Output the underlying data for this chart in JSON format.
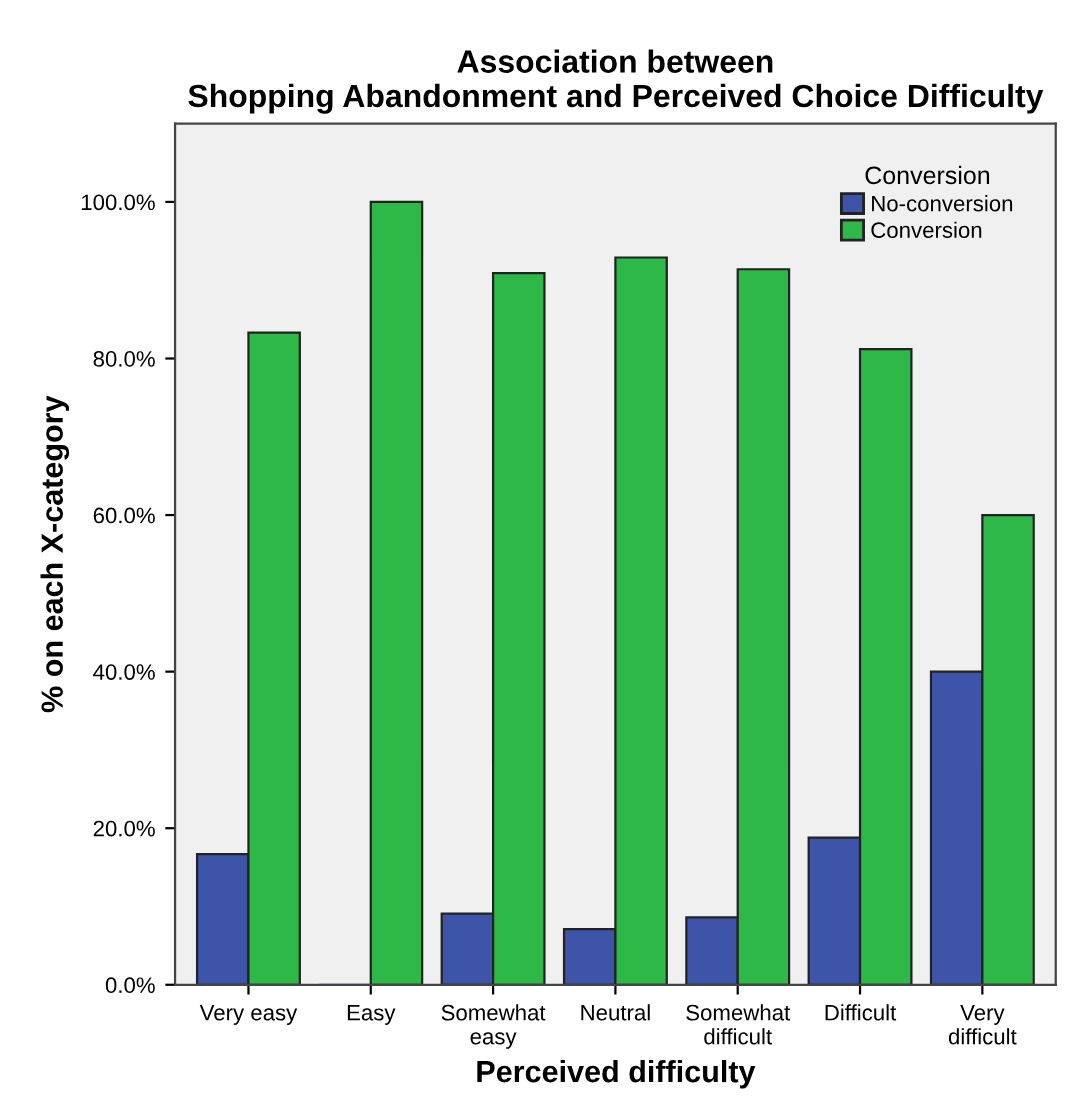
{
  "chart_data": {
    "type": "bar",
    "title": "Association between\nShopping Abandonment and Perceived Choice Difficulty",
    "xlabel": "Perceived difficulty",
    "ylabel": "% on each X-category",
    "legend_title": "Conversion",
    "categories": [
      "Very easy",
      "Easy",
      "Somewhat\neasy",
      "Neutral",
      "Somewhat\ndifficult",
      "Difficult",
      "Very\ndifficult"
    ],
    "series": [
      {
        "name": "No-conversion",
        "color": "#3d54a8",
        "values": [
          16.7,
          0,
          9.1,
          7.1,
          8.6,
          18.8,
          40.0
        ]
      },
      {
        "name": "Conversion",
        "color": "#2eb848",
        "values": [
          83.3,
          100,
          90.9,
          92.9,
          91.4,
          81.2,
          60.0
        ]
      }
    ],
    "ylim": [
      0,
      110
    ],
    "yticks": [
      {
        "value": 0,
        "label": "0.0%"
      },
      {
        "value": 20,
        "label": "20.0%"
      },
      {
        "value": 40,
        "label": "40.0%"
      },
      {
        "value": 60,
        "label": "60.0%"
      },
      {
        "value": 80,
        "label": "80.0%"
      },
      {
        "value": 100,
        "label": "100.0%"
      }
    ],
    "grid": false,
    "legend": "top right"
  }
}
